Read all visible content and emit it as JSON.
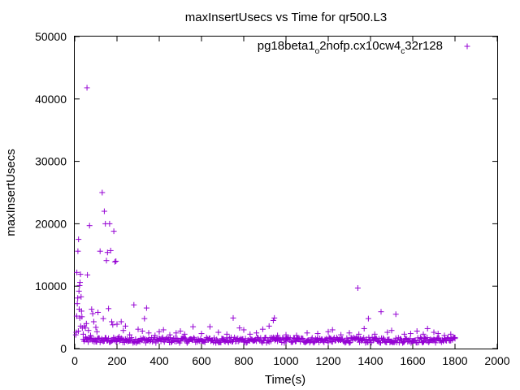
{
  "chart_data": {
    "type": "scatter",
    "title": "maxInsertUsecs vs Time for qr500.L3",
    "xlabel": "Time(s)",
    "ylabel": "maxInsertUsecs",
    "xlim": [
      0,
      2000
    ],
    "ylim": [
      0,
      50000
    ],
    "x_ticks": [
      "0",
      "200",
      "400",
      "600",
      "800",
      "1000",
      "1200",
      "1400",
      "1600",
      "1800",
      "2000"
    ],
    "y_ticks": [
      "0",
      "10000",
      "20000",
      "30000",
      "40000",
      "50000"
    ],
    "grid": false,
    "legend_position": "top-right",
    "marker": "+",
    "series": [
      {
        "name": "pg18beta1_o2nofp.cx10cw4_c32r128",
        "name_parts": [
          {
            "text": "pg18beta1",
            "sub": false
          },
          {
            "text": "o",
            "sub": true
          },
          {
            "text": "2nofp.cx10cw4",
            "sub": false
          },
          {
            "text": "c",
            "sub": true
          },
          {
            "text": "32r128",
            "sub": false
          }
        ],
        "color": "#9400d3",
        "points": [
          [
            5,
            2200
          ],
          [
            7,
            2600
          ],
          [
            9,
            5200
          ],
          [
            10,
            12200
          ],
          [
            12,
            7200
          ],
          [
            14,
            8100
          ],
          [
            15,
            15600
          ],
          [
            17,
            2800
          ],
          [
            18,
            17500
          ],
          [
            20,
            9200
          ],
          [
            21,
            6300
          ],
          [
            23,
            10100
          ],
          [
            24,
            4900
          ],
          [
            25,
            10600
          ],
          [
            27,
            11900
          ],
          [
            28,
            3600
          ],
          [
            30,
            8300
          ],
          [
            32,
            6000
          ],
          [
            34,
            5100
          ],
          [
            36,
            3300
          ],
          [
            40,
            2300
          ],
          [
            45,
            3600
          ],
          [
            50,
            3300
          ],
          [
            55,
            4000
          ],
          [
            58,
            41800
          ],
          [
            60,
            11800
          ],
          [
            65,
            2900
          ],
          [
            70,
            19700
          ],
          [
            75,
            2100
          ],
          [
            80,
            6300
          ],
          [
            85,
            5600
          ],
          [
            90,
            4300
          ],
          [
            100,
            3400
          ],
          [
            105,
            2700
          ],
          [
            110,
            5800
          ],
          [
            120,
            15600
          ],
          [
            130,
            25000
          ],
          [
            135,
            4800
          ],
          [
            140,
            22000
          ],
          [
            145,
            20000
          ],
          [
            150,
            14100
          ],
          [
            155,
            15400
          ],
          [
            160,
            6400
          ],
          [
            165,
            20000
          ],
          [
            170,
            15700
          ],
          [
            175,
            4300
          ],
          [
            180,
            3800
          ],
          [
            185,
            18800
          ],
          [
            190,
            13900
          ],
          [
            195,
            14000
          ],
          [
            200,
            3900
          ],
          [
            210,
            1900
          ],
          [
            220,
            4300
          ],
          [
            230,
            2900
          ],
          [
            240,
            3600
          ],
          [
            260,
            2200
          ],
          [
            280,
            7000
          ],
          [
            300,
            3100
          ],
          [
            320,
            2800
          ],
          [
            330,
            4800
          ],
          [
            340,
            6500
          ],
          [
            350,
            2500
          ],
          [
            380,
            2100
          ],
          [
            400,
            2700
          ],
          [
            420,
            3000
          ],
          [
            450,
            2200
          ],
          [
            480,
            2500
          ],
          [
            500,
            2800
          ],
          [
            520,
            2300
          ],
          [
            560,
            3500
          ],
          [
            600,
            2400
          ],
          [
            640,
            3500
          ],
          [
            680,
            2600
          ],
          [
            720,
            2300
          ],
          [
            750,
            4900
          ],
          [
            780,
            3300
          ],
          [
            800,
            3000
          ],
          [
            830,
            2300
          ],
          [
            860,
            2500
          ],
          [
            890,
            3100
          ],
          [
            920,
            3600
          ],
          [
            940,
            4500
          ],
          [
            945,
            4900
          ],
          [
            960,
            2100
          ],
          [
            1000,
            2200
          ],
          [
            1050,
            2100
          ],
          [
            1100,
            2500
          ],
          [
            1150,
            2400
          ],
          [
            1200,
            2700
          ],
          [
            1220,
            3000
          ],
          [
            1260,
            2200
          ],
          [
            1300,
            2500
          ],
          [
            1340,
            9700
          ],
          [
            1345,
            2300
          ],
          [
            1370,
            3200
          ],
          [
            1390,
            4800
          ],
          [
            1420,
            2300
          ],
          [
            1450,
            5900
          ],
          [
            1480,
            2600
          ],
          [
            1500,
            2900
          ],
          [
            1520,
            5500
          ],
          [
            1560,
            2300
          ],
          [
            1590,
            2400
          ],
          [
            1620,
            2800
          ],
          [
            1650,
            2300
          ],
          [
            1670,
            3200
          ],
          [
            1700,
            2600
          ],
          [
            1720,
            2400
          ],
          [
            1750,
            2100
          ],
          [
            1780,
            2300
          ],
          [
            1800,
            1600
          ]
        ]
      }
    ]
  }
}
